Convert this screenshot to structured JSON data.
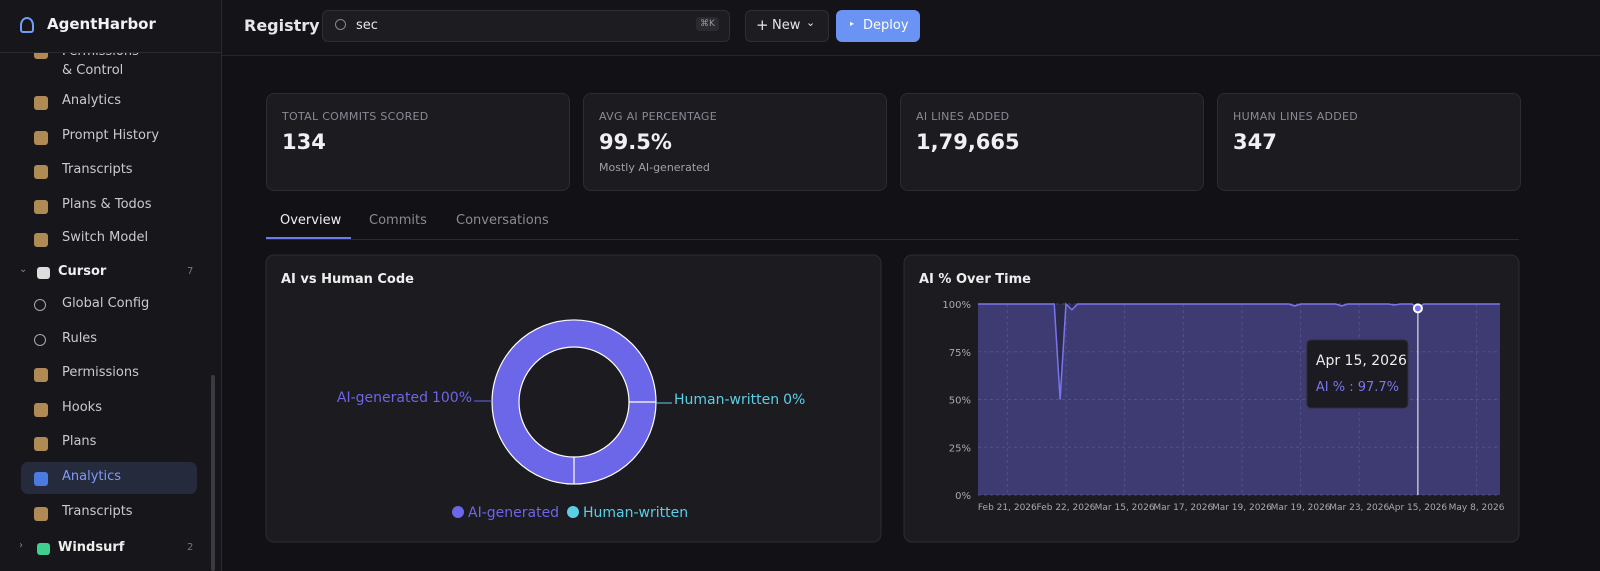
{
  "sidebar": {
    "brand": "AgentHarbor",
    "items": [
      "Permissions & Control",
      "Analytics",
      "Prompt History",
      "Transcripts",
      "Plans & Todos",
      "Switch Model"
    ],
    "groups": [
      {
        "name": "Cursor",
        "count": 7,
        "items": [
          "Global Config",
          "Rules",
          "Permissions",
          "Hooks",
          "Plans",
          "Analytics",
          "Transcripts"
        ]
      },
      {
        "name": "Windsurf",
        "count": 2
      }
    ]
  },
  "topbar": {
    "title": "Registry",
    "search": "sec",
    "shortcut": "⌘K",
    "new": "New",
    "deploy": "Deploy"
  },
  "stats": [
    {
      "label": "TOTAL COMMITS SCORED",
      "value": "134"
    },
    {
      "label": "AVG AI PERCENTAGE",
      "value": "99.5%",
      "note": "Mostly AI-generated"
    },
    {
      "label": "AI LINES ADDED",
      "value": "1,79,665"
    },
    {
      "label": "HUMAN LINES ADDED",
      "value": "347"
    }
  ],
  "tabs": [
    "Overview",
    "Commits",
    "Conversations"
  ],
  "chart_data": [
    {
      "type": "pie",
      "title": "AI vs Human Code",
      "categories": [
        "AI-generated",
        "Human-written"
      ],
      "values": [
        100,
        0
      ],
      "value_labels": [
        "100%",
        "0%"
      ],
      "colors": [
        "#6c66e8",
        "#5ccfe6"
      ],
      "legend": "bottom"
    },
    {
      "type": "line",
      "title": "AI % Over Time",
      "categories": [
        null,
        null,
        null,
        null,
        null,
        "Feb 21, 2026",
        null,
        null,
        null,
        null,
        null,
        null,
        null,
        null,
        null,
        "Feb 22, 2026",
        null,
        null,
        null,
        null,
        null,
        null,
        null,
        null,
        null,
        "Mar 15, 2026",
        null,
        null,
        null,
        null,
        null,
        null,
        null,
        null,
        null,
        "Mar 17, 2026",
        null,
        null,
        null,
        null,
        null,
        null,
        null,
        null,
        null,
        "Mar 19, 2026",
        null,
        null,
        null,
        null,
        null,
        null,
        null,
        null,
        null,
        "Mar 19, 2026",
        null,
        null,
        null,
        null,
        null,
        null,
        null,
        null,
        null,
        "Mar 23, 2026",
        null,
        null,
        null,
        null,
        null,
        null,
        null,
        null,
        null,
        "Apr 15, 2026",
        null,
        null,
        null,
        null,
        null,
        null,
        null,
        null,
        null,
        "May 8, 2026",
        null,
        null,
        null,
        null
      ],
      "series": [
        {
          "name": "AI %",
          "color": "#7b74f0",
          "values": [
            100,
            100,
            100,
            100,
            100,
            100,
            100,
            100,
            100,
            100,
            100,
            100,
            100,
            100,
            50,
            100,
            97,
            100,
            100,
            100,
            100,
            100,
            100,
            100,
            100,
            100,
            100,
            100,
            100,
            100,
            100,
            100,
            100,
            100,
            100,
            100,
            100,
            100,
            100,
            100,
            100,
            100,
            100,
            100,
            100,
            100,
            100,
            100,
            100,
            100,
            100,
            100,
            100,
            100,
            99,
            100,
            100,
            100,
            100,
            100,
            100,
            100,
            99,
            100,
            100,
            100,
            100,
            100,
            100,
            100,
            100,
            99.5,
            100,
            100,
            100,
            97.7,
            100,
            100,
            100,
            100,
            100,
            100,
            100,
            100,
            100,
            100,
            100,
            100,
            100,
            100
          ]
        }
      ],
      "ylim": [
        0,
        100
      ],
      "yticks": [
        {
          "value": 0,
          "label": "0%"
        },
        {
          "value": 25,
          "label": "25%"
        },
        {
          "value": 50,
          "label": "50%"
        },
        {
          "value": 75,
          "label": "75%"
        },
        {
          "value": 100,
          "label": "100%"
        }
      ],
      "grid": true,
      "tooltip": {
        "title": "Apr 15, 2026",
        "text": "AI % : 97.7%"
      }
    }
  ]
}
